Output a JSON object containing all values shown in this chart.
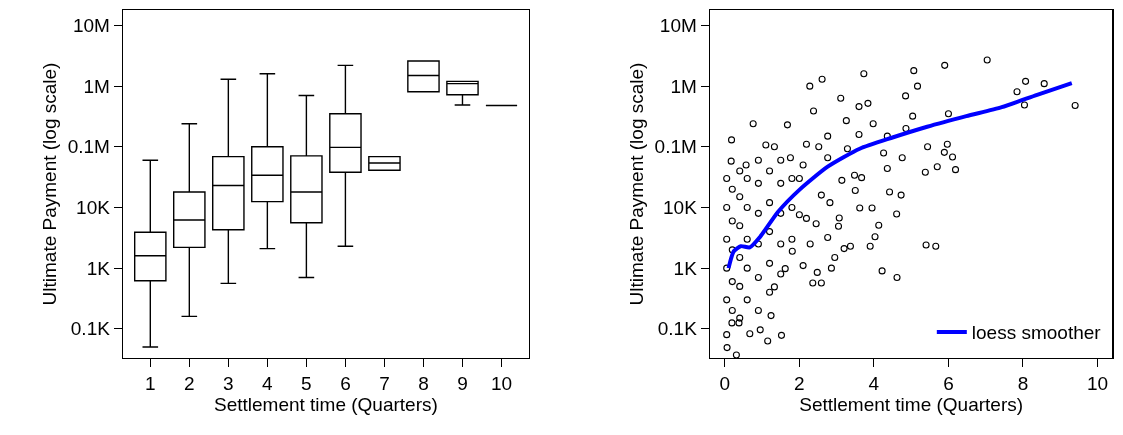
{
  "chart_data": [
    {
      "type": "box",
      "xlabel": "Settlement time (Quarters)",
      "ylabel": "Ultimate Payment (log scale)",
      "categories": [
        "1",
        "2",
        "3",
        "4",
        "5",
        "6",
        "7",
        "8",
        "9",
        "10"
      ],
      "boxes": [
        {
          "low": 50,
          "q1": 620,
          "median": 1600,
          "q3": 3900,
          "high": 60000
        },
        {
          "low": 160,
          "q1": 2200,
          "median": 6200,
          "q3": 18000,
          "high": 240000
        },
        {
          "low": 560,
          "q1": 4300,
          "median": 23000,
          "q3": 69000,
          "high": 1300000
        },
        {
          "low": 2100,
          "q1": 12500,
          "median": 34000,
          "q3": 100000,
          "high": 1600000
        },
        {
          "low": 700,
          "q1": 5600,
          "median": 18000,
          "q3": 71000,
          "high": 700000
        },
        {
          "low": 2300,
          "q1": 38000,
          "median": 98000,
          "q3": 350000,
          "high": 2200000
        },
        {
          "low": 41000,
          "q1": 41000,
          "median": 54000,
          "q3": 69000,
          "high": 69000
        },
        {
          "low": 810000,
          "q1": 810000,
          "median": 1500000,
          "q3": 2600000,
          "high": 2600000
        },
        {
          "low": 490000,
          "q1": 720000,
          "median": 1100000,
          "q3": 1200000,
          "high": 1200000
        },
        {
          "low": 480000,
          "q1": 480000,
          "median": 480000,
          "q3": 480000,
          "high": 480000
        }
      ],
      "color": "#000000",
      "log": "y",
      "ylim": [
        33,
        18000000
      ],
      "yticks": [
        {
          "value": 100,
          "label": "0.1K"
        },
        {
          "value": 1000,
          "label": "1K"
        },
        {
          "value": 10000,
          "label": "10K"
        },
        {
          "value": 100000,
          "label": "0.1M"
        },
        {
          "value": 1000000,
          "label": "1M"
        },
        {
          "value": 10000000,
          "label": "10M"
        }
      ],
      "grid": false,
      "legend": false
    },
    {
      "type": "scatter",
      "xlabel": "Settlement time (Quarters)",
      "ylabel": "Ultimate Payment (log scale)",
      "series": [
        {
          "type": "scatter",
          "color": "#000000",
          "marker": "circle",
          "x": [
            7.04,
            5.9,
            5.07,
            3.73,
            2.61,
            2.28,
            5.17,
            8.07,
            8.57,
            7.84,
            8.04,
            9.4,
            4.85,
            3.11,
            3.84,
            3.6,
            5.04,
            6.0,
            2.38,
            0.76,
            0.18,
            1.68,
            3.98,
            3.26,
            4.86,
            4.36,
            5.44,
            5.97,
            5.89,
            6.11,
            6.19,
            5.7,
            5.38,
            4.76,
            4.26,
            4.36,
            4.73,
            4.42,
            4.61,
            4.13,
            4.03,
            3.9,
            5.4,
            5.66,
            4.22,
            4.62,
            3.37,
            3.2,
            2.95,
            2.86,
            2.59,
            2.36,
            2.48,
            2.1,
            3.95,
            3.62,
            3.5,
            3.67,
            3.48,
            2.59,
            2.82,
            3.05,
            3.07,
            2.76,
            2.29,
            2.45,
            2.19,
            2.76,
            2.19,
            2.52,
            2.1,
            2.76,
            3.29,
            3.14,
            3.6,
            1.52,
            1.15,
            0.31,
            0.06,
            0.17,
            0.57,
            1.1,
            1.33,
            1.76,
            2.0,
            2.0,
            1.81,
            1.62,
            1.33,
            1.24,
            0.95,
            0.67,
            0.38,
            0.19,
            0.05,
            0.05,
            0.05,
            0.05,
            0.05,
            0.05,
            0.2,
            0.2,
            0.2,
            0.2,
            0.2,
            0.4,
            0.4,
            0.4,
            0.4,
            0.4,
            0.4,
            0.6,
            0.6,
            0.6,
            0.6,
            0.6,
            0.9,
            0.9,
            0.9,
            0.9,
            0.9,
            0.9,
            1.2,
            1.2,
            1.2,
            1.2,
            1.2,
            1.5,
            1.5,
            1.5,
            1.5,
            1.5,
            1.8,
            1.8,
            1.8
          ],
          "values": [
            2700000,
            2200000,
            1800000,
            1600000,
            1300000,
            1000000,
            1000000,
            1200000,
            1100000,
            810000,
            490000,
            480000,
            690000,
            630000,
            520000,
            460000,
            320000,
            350000,
            390000,
            240000,
            130000,
            230000,
            240000,
            270000,
            200000,
            150000,
            100000,
            110000,
            81000,
            68000,
            42000,
            47000,
            38000,
            66000,
            79000,
            44000,
            16000,
            18000,
            7800,
            5100,
            3300,
            2300,
            2400,
            2300,
            900,
            700,
            2300,
            2100,
            1500,
            1000,
            570,
            570,
            850,
            1100,
            9800,
            9800,
            19000,
            31000,
            34000,
            16000,
            12000,
            4900,
            6700,
            3200,
            2500,
            5400,
            6600,
            150000,
            110000,
            100000,
            50000,
            66000,
            93000,
            28000,
            160000,
            78,
            63,
            37,
            49,
            58000,
            50000,
            107000,
            100000,
            66000,
            30000,
            7600,
            1900,
            980,
            490,
            165,
            96,
            83,
            125,
            125,
            80,
            300,
            1000,
            3000,
            10000,
            30000,
            200,
            600,
            2000,
            6000,
            20000,
            150,
            500,
            1500,
            5000,
            15000,
            40000,
            300,
            1000,
            3000,
            10000,
            30000,
            200,
            700,
            2500,
            8000,
            25000,
            60000,
            400,
            1200,
            4000,
            12000,
            40000,
            800,
            2500,
            8000,
            25000,
            60000,
            3000,
            10000,
            30000
          ]
        },
        {
          "type": "line",
          "name": "loess smoother",
          "color": "#0000ff",
          "marker": "none",
          "line_style": "solid",
          "x": [
            0.1,
            0.24,
            0.43,
            0.67,
            0.95,
            1.43,
            2.0,
            2.76,
            3.62,
            4.48,
            5.43,
            6.48,
            7.43,
            8.38,
            9.31
          ],
          "values": [
            1000,
            1900,
            2300,
            2200,
            3300,
            8500,
            19500,
            47000,
            93000,
            141000,
            214000,
            320000,
            450000,
            720000,
            1120000
          ]
        }
      ],
      "xlim": [
        -0.4,
        10.4
      ],
      "xticks": [
        0,
        2,
        4,
        6,
        8,
        10
      ],
      "log": "y",
      "ylim": [
        33,
        18000000
      ],
      "yticks": [
        {
          "value": 100,
          "label": "0.1K"
        },
        {
          "value": 1000,
          "label": "1K"
        },
        {
          "value": 10000,
          "label": "10K"
        },
        {
          "value": 100000,
          "label": "0.1M"
        },
        {
          "value": 1000000,
          "label": "1M"
        },
        {
          "value": 10000000,
          "label": "10M"
        }
      ],
      "grid": false,
      "legend": "bottom right"
    }
  ]
}
